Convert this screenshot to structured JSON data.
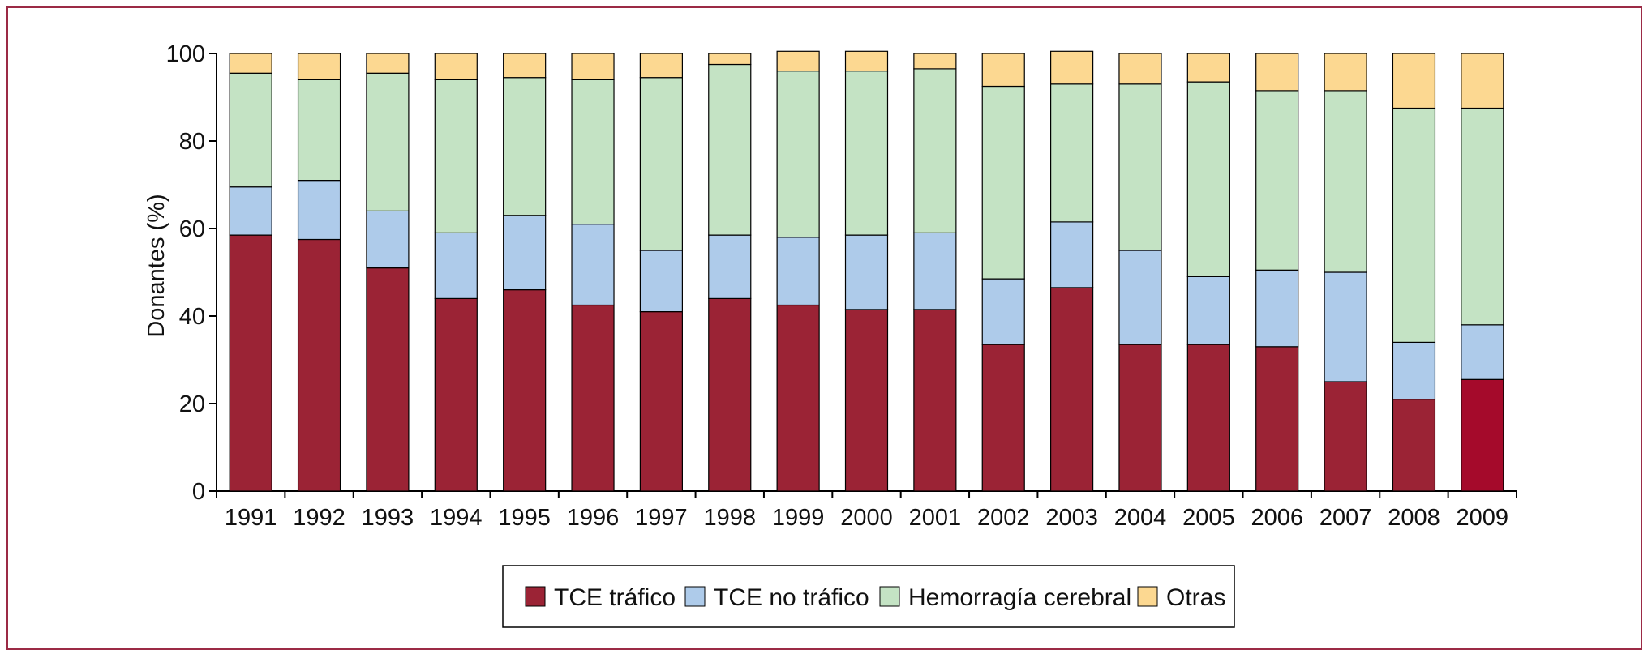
{
  "chart_data": {
    "type": "bar",
    "stacked": true,
    "title": "",
    "xlabel": "",
    "ylabel": "Donantes (%)",
    "ylim": [
      0,
      100
    ],
    "yticks": [
      "0",
      "20",
      "40",
      "60",
      "80",
      "100"
    ],
    "grid": false,
    "legend_position": "bottom",
    "categories": [
      "1991",
      "1992",
      "1993",
      "1994",
      "1995",
      "1996",
      "1997",
      "1998",
      "1999",
      "2000",
      "2001",
      "2002",
      "2003",
      "2004",
      "2005",
      "2006",
      "2007",
      "2008",
      "2009"
    ],
    "series": [
      {
        "name": "TCE tráfico",
        "color": "#9b2335",
        "values": [
          58.5,
          57.5,
          51,
          44,
          46,
          42.5,
          41,
          44,
          42.5,
          41.5,
          41.5,
          33.5,
          46.5,
          33.5,
          33.5,
          33,
          25,
          21,
          25.5
        ],
        "highlight": {
          "index": 18,
          "color": "#a50a2b"
        }
      },
      {
        "name": "TCE no tráfico",
        "color": "#aecbea",
        "values": [
          11,
          13.5,
          13,
          15,
          17,
          18.5,
          14,
          14.5,
          15.5,
          17,
          17.5,
          15,
          15,
          21.5,
          15.5,
          17.5,
          25,
          13,
          12.5
        ]
      },
      {
        "name": "Hemorragía cerebral",
        "color": "#c4e3c4",
        "values": [
          26,
          23,
          31.5,
          35,
          31.5,
          33,
          39.5,
          39,
          38,
          37.5,
          37.5,
          44,
          31.5,
          38,
          44.5,
          41,
          41.5,
          53.5,
          49.5
        ]
      },
      {
        "name": "Otras",
        "color": "#fcd891",
        "values": [
          4.5,
          6,
          4.5,
          6,
          5.5,
          6,
          5.5,
          2.5,
          4.5,
          4.5,
          3.5,
          7.5,
          7.5,
          7,
          6.5,
          8.5,
          8.5,
          12.5,
          12.5
        ]
      }
    ]
  }
}
